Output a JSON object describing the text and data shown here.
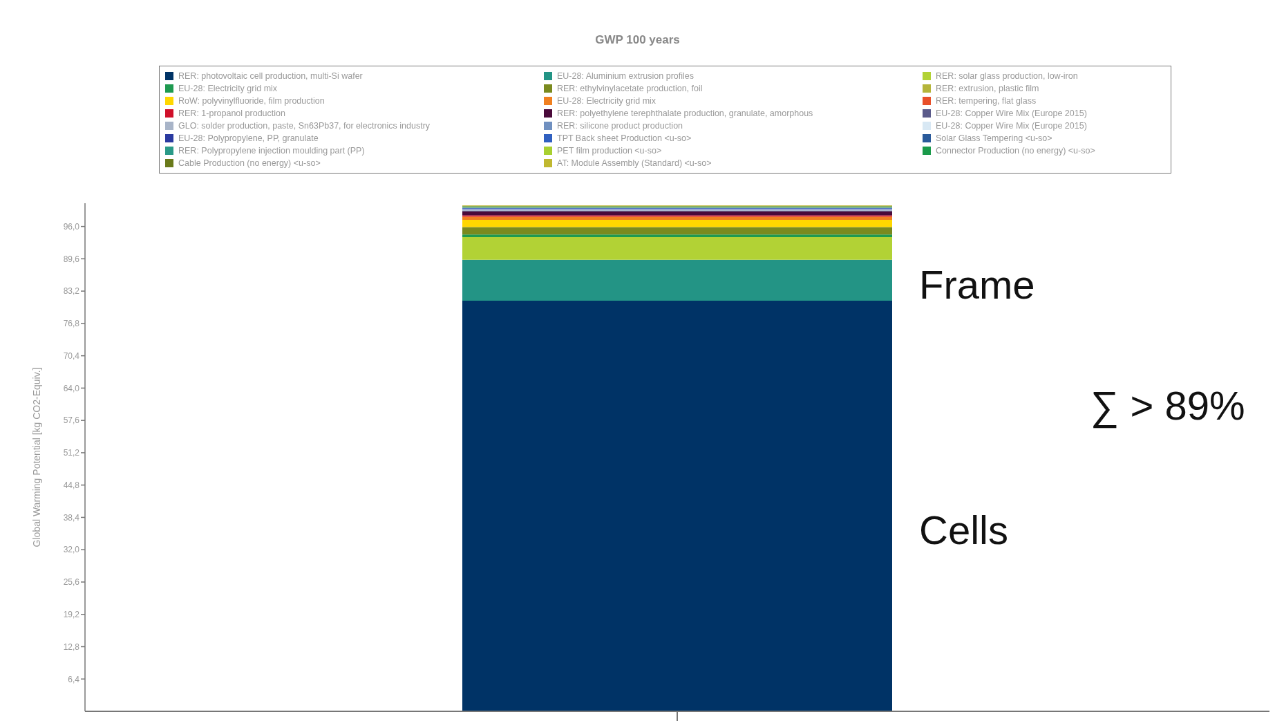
{
  "chart_data": {
    "type": "bar",
    "stacked": true,
    "title": "GWP 100 years",
    "ylabel": "Global Warming Potential [kg CO2-Equiv.]",
    "categories": [
      null
    ],
    "ylim": [
      0,
      100.6
    ],
    "yticks": [
      {
        "value": 6.4,
        "label": "6,4"
      },
      {
        "value": 12.8,
        "label": "12,8"
      },
      {
        "value": 19.2,
        "label": "19,2"
      },
      {
        "value": 25.6,
        "label": "25,6"
      },
      {
        "value": 32,
        "label": "32,0"
      },
      {
        "value": 38.4,
        "label": "38,4"
      },
      {
        "value": 44.8,
        "label": "44,8"
      },
      {
        "value": 51.2,
        "label": "51,2"
      },
      {
        "value": 57.6,
        "label": "57,6"
      },
      {
        "value": 64,
        "label": "64,0"
      },
      {
        "value": 70.4,
        "label": "70,4"
      },
      {
        "value": 76.8,
        "label": "76,8"
      },
      {
        "value": 83.2,
        "label": "83,2"
      },
      {
        "value": 89.6,
        "label": "89,6"
      },
      {
        "value": 96,
        "label": "96,0"
      }
    ],
    "legend": "top",
    "series": [
      {
        "name": "RER: photovoltaic cell production, multi-Si wafer",
        "color": "#003366",
        "values": [
          81.3
        ]
      },
      {
        "name": "EU-28: Aluminium extrusion profiles",
        "color": "#239485",
        "values": [
          8.1
        ]
      },
      {
        "name": "RER: solar glass production, low-iron",
        "color": "#b2d235",
        "values": [
          4.5
        ]
      },
      {
        "name": "EU-28: Electricity grid mix",
        "color": "#1e9a50",
        "values": [
          0.5
        ]
      },
      {
        "name": "RER: ethylvinylacetate production, foil",
        "color": "#7a8a1e",
        "values": [
          1.4
        ]
      },
      {
        "name": "RER: extrusion, plastic film",
        "color": "#b5b53a",
        "values": [
          0.1
        ]
      },
      {
        "name": "RoW: polyvinylfluoride, film production",
        "color": "#ffd700",
        "values": [
          1.4
        ]
      },
      {
        "name": "EU-28: Electricity grid mix",
        "color": "#f08020",
        "values": [
          0.6
        ]
      },
      {
        "name": "RER: tempering, flat glass",
        "color": "#e8502a",
        "values": [
          0.1
        ]
      },
      {
        "name": "RER: 1-propanol production",
        "color": "#d0102a",
        "values": [
          0.2
        ]
      },
      {
        "name": "RER: polyethylene terephthalate production, granulate, amorphous",
        "color": "#4a0a3a",
        "values": [
          0.8
        ]
      },
      {
        "name": "EU-28: Copper Wire Mix (Europe 2015)",
        "color": "#5a5a8a",
        "values": [
          0.1
        ]
      },
      {
        "name": "GLO: solder production, paste, Sn63Pb37, for electronics industry",
        "color": "#a8b4c8",
        "values": [
          0.1
        ]
      },
      {
        "name": "RER: silicone product production",
        "color": "#7090c0",
        "values": [
          0.1
        ]
      },
      {
        "name": "EU-28: Copper Wire Mix (Europe 2015)",
        "color": "#d8e8f4",
        "values": [
          0.1
        ]
      },
      {
        "name": "EU-28: Polypropylene, PP, granulate",
        "color": "#2a3aa0",
        "values": [
          0.1
        ]
      },
      {
        "name": "TPT Back sheet Production <u-so>",
        "color": "#3060c0",
        "values": [
          0.1
        ]
      },
      {
        "name": "Solar Glass Tempering <u-so>",
        "color": "#2a5a9a",
        "values": [
          0.1
        ]
      },
      {
        "name": "RER: Polypropylene injection moulding part (PP)",
        "color": "#2a9a88",
        "values": [
          0.1
        ]
      },
      {
        "name": "PET film production <u-so>",
        "color": "#a8d030",
        "values": [
          0.1
        ]
      },
      {
        "name": "Connector Production (no energy) <u-so>",
        "color": "#1a9a4a",
        "values": [
          0.1
        ]
      },
      {
        "name": "Cable Production (no energy) <u-so>",
        "color": "#6a7a1a",
        "values": [
          0.1
        ]
      },
      {
        "name": "AT: Module Assembly (Standard) <u-so>",
        "color": "#c0b830",
        "values": [
          0.1
        ]
      }
    ],
    "annotations": [
      "Frame",
      "Cells",
      "∑ > 89%"
    ]
  }
}
